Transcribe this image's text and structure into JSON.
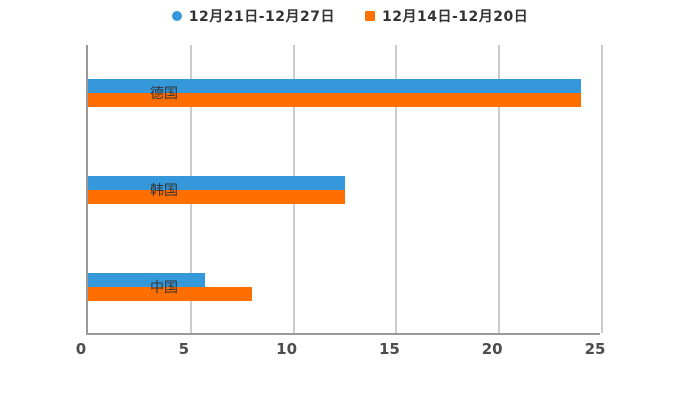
{
  "chart_data": {
    "type": "bar",
    "orientation": "horizontal",
    "title": "",
    "xlabel": "",
    "ylabel": "",
    "categories": [
      "德国",
      "韩国",
      "中国"
    ],
    "series": [
      {
        "name": "12月21日-12月27日",
        "color": "#3498db",
        "marker": "circle",
        "values": [
          24,
          12.5,
          5.7
        ]
      },
      {
        "name": "12月14日-12月20日",
        "color": "#ff6e00",
        "marker": "square",
        "values": [
          24,
          12.5,
          8
        ]
      }
    ],
    "xlim": [
      0,
      25
    ],
    "xticks": [
      0,
      5,
      10,
      15,
      20,
      25
    ],
    "grid": "vertical-gridlines-on",
    "legend_position": "top-center"
  },
  "colors": {
    "background": "#ffffff",
    "gridline": "#cccccc",
    "axis_line": "#999999",
    "tick_label": "#4d4d4d",
    "category_label": "#333333",
    "legend_text": "#333333",
    "series_blue": "#3498db",
    "series_orange": "#ff6e00"
  }
}
